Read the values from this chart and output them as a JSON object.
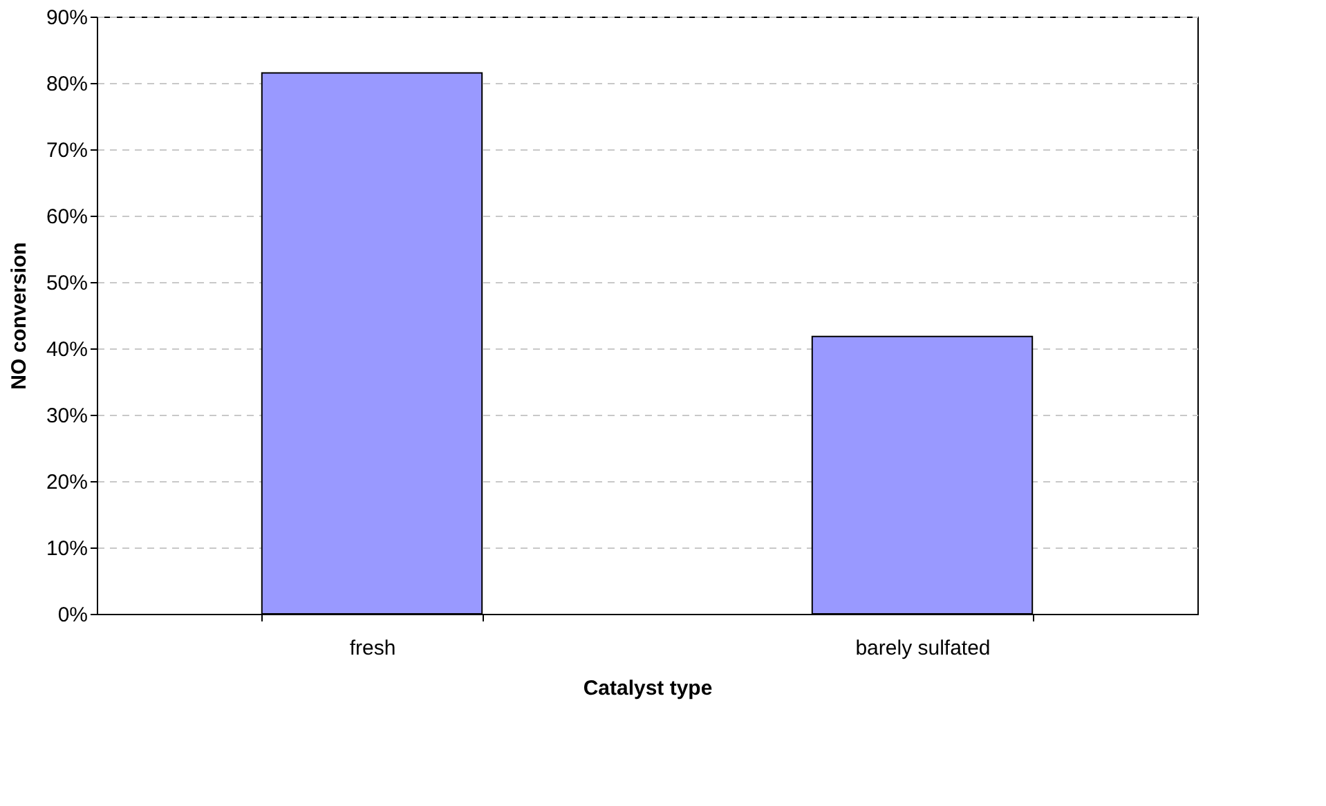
{
  "chart_data": {
    "type": "bar",
    "xlabel": "Catalyst type",
    "ylabel": "NO conversion",
    "categories": [
      "fresh",
      "barely sulfated"
    ],
    "series": [
      {
        "color": "#9999ff",
        "values": [
          81.5,
          41.8
        ]
      }
    ],
    "ylim": [
      0,
      90
    ],
    "yticks": [
      {
        "value": 0,
        "label": "0%"
      },
      {
        "value": 10,
        "label": "10%"
      },
      {
        "value": 20,
        "label": "20%"
      },
      {
        "value": 30,
        "label": "30%"
      },
      {
        "value": 40,
        "label": "40%"
      },
      {
        "value": 50,
        "label": "50%"
      },
      {
        "value": 60,
        "label": "60%"
      },
      {
        "value": 70,
        "label": "70%"
      },
      {
        "value": 80,
        "label": "80%"
      },
      {
        "value": 90,
        "label": "90%"
      }
    ],
    "grid": "y",
    "legend": false
  }
}
